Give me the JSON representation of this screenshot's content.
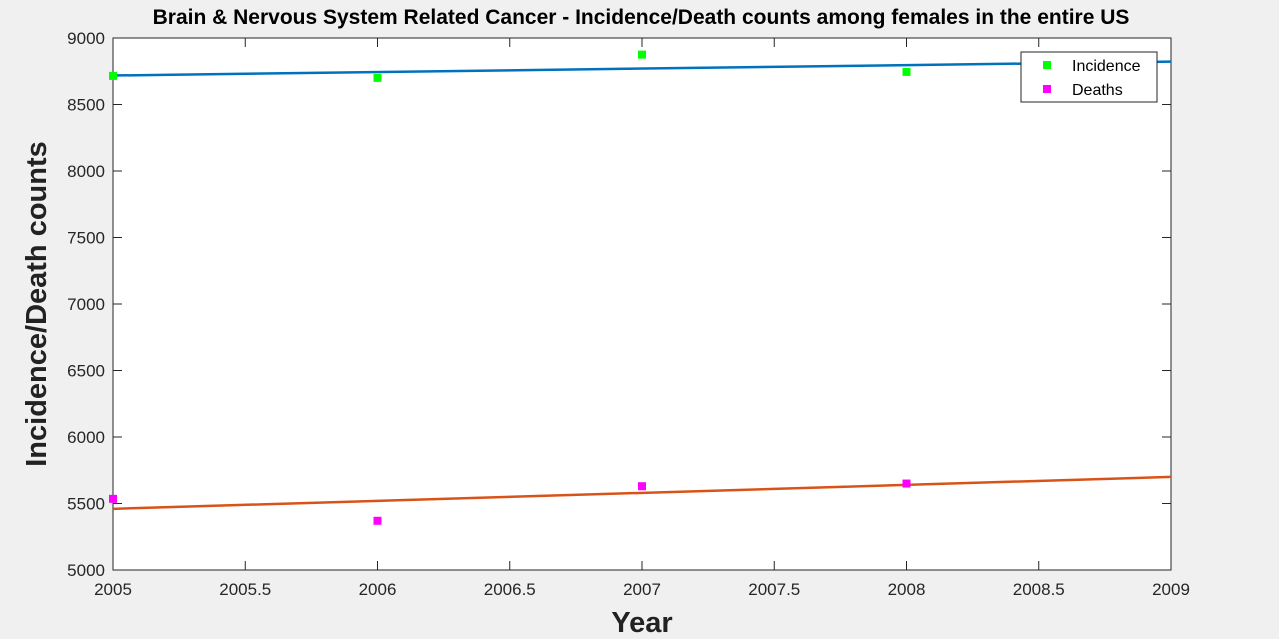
{
  "chart_data": {
    "type": "scatter",
    "title": "Brain & Nervous System Related Cancer - Incidence/Death counts among females in the entire US",
    "xlabel": "Year",
    "ylabel": "Incidence/Death counts",
    "xlim": [
      2005,
      2009
    ],
    "ylim": [
      5000,
      9000
    ],
    "xticks": [
      "2005",
      "2005.5",
      "2006",
      "2006.5",
      "2007",
      "2007.5",
      "2008",
      "2008.5",
      "2009"
    ],
    "yticks": [
      "5000",
      "5500",
      "6000",
      "6500",
      "7000",
      "7500",
      "8000",
      "8500",
      "9000"
    ],
    "grid": false,
    "legend": "top-right",
    "series": [
      {
        "name": "Incidence",
        "marker_color": "#00ff00",
        "x": [
          2005,
          2006,
          2007,
          2008
        ],
        "y": [
          8715,
          8700,
          8875,
          8745
        ],
        "trend_color": "#0072bd",
        "trend": {
          "x": [
            2005,
            2009
          ],
          "y": [
            8718,
            8822
          ]
        }
      },
      {
        "name": "Deaths",
        "marker_color": "#ff00ff",
        "x": [
          2005,
          2006,
          2007,
          2008
        ],
        "y": [
          5535,
          5370,
          5630,
          5650
        ],
        "trend_color": "#d95319",
        "trend": {
          "x": [
            2005,
            2009
          ],
          "y": [
            5460,
            5700
          ]
        }
      }
    ]
  }
}
